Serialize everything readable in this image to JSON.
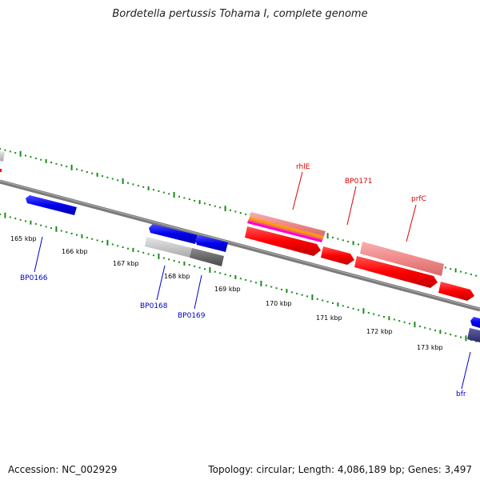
{
  "title": "Bordetella pertussis Tohama I, complete genome",
  "footer": {
    "accession": "Accession: NC_002929",
    "summary": "Topology: circular; Length: 4,086,189 bp; Genes: 3,497"
  },
  "ticks": [
    "165 kbp",
    "166 kbp",
    "167 kbp",
    "168 kbp",
    "169 kbp",
    "170 kbp",
    "171 kbp",
    "172 kbp",
    "173 kbp"
  ],
  "gene_labels": {
    "bp0166": "BP0166",
    "bp0168": "BP0168",
    "bp0169": "BP0169",
    "rhle": "rhlE",
    "bp0171": "BP0171",
    "prfc": "prfC",
    "bfr": "bfr"
  },
  "colors": {
    "backbone": "#7a7a7a",
    "tick_green": "#1a8a1a",
    "forward_red": "#ff0000",
    "reverse_blue": "#0000ee",
    "pink": "#f08a8a",
    "gray_light": "#c8c8c8",
    "gray_dark": "#6a6a6a",
    "orange": "#ff9900",
    "magenta": "#ff00cc",
    "navy": "#3a3a8a"
  }
}
